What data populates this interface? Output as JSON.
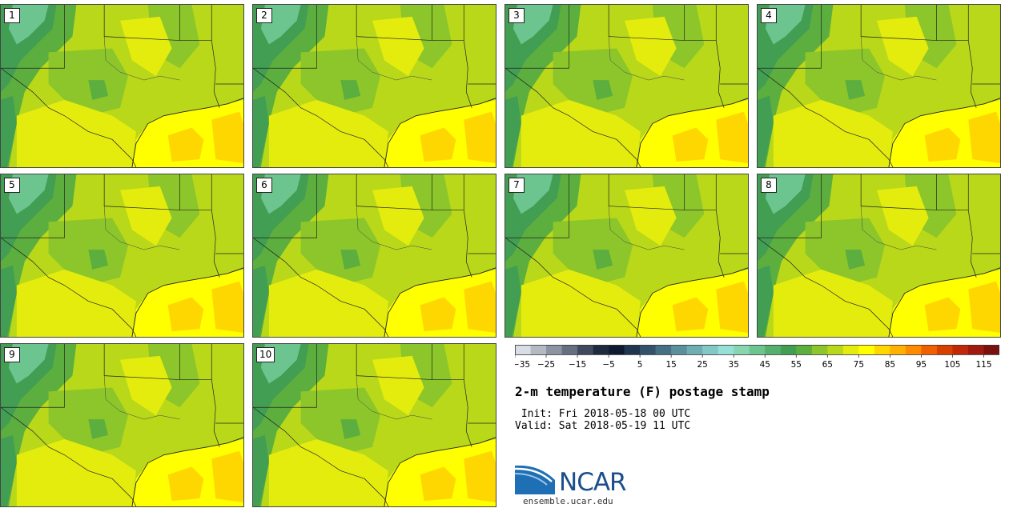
{
  "panels": [
    {
      "label": "1"
    },
    {
      "label": "2"
    },
    {
      "label": "3"
    },
    {
      "label": "4"
    },
    {
      "label": "5"
    },
    {
      "label": "6"
    },
    {
      "label": "7"
    },
    {
      "label": "8"
    },
    {
      "label": "9"
    },
    {
      "label": "10"
    }
  ],
  "colorbar": {
    "colors": [
      "#d9dde5",
      "#b4b9c3",
      "#8d93a0",
      "#666f80",
      "#3f4a5e",
      "#1d2a40",
      "#0d1a30",
      "#1f3550",
      "#32516a",
      "#457083",
      "#5a8f9c",
      "#6fadb3",
      "#83c8c6",
      "#97e0d7",
      "#88d6b0",
      "#6cc48e",
      "#55b06e",
      "#419e52",
      "#5cae3e",
      "#8cc62a",
      "#b9d81a",
      "#e4ec0e",
      "#ffff00",
      "#ffd700",
      "#ffb000",
      "#ff8a00",
      "#f06000",
      "#d84000",
      "#c02808",
      "#a01a10",
      "#7a1010"
    ],
    "tick_labels": [
      "−35",
      "−25",
      "−15",
      "−5",
      "5",
      "15",
      "25",
      "35",
      "45",
      "55",
      "65",
      "75",
      "85",
      "95",
      "105",
      "115"
    ]
  },
  "title": "2-m temperature (F) postage stamp",
  "init_line": " Init: Fri 2018-05-18 00 UTC",
  "valid_line": "Valid: Sat 2018-05-19 11 UTC",
  "logo": {
    "text": "NCAR",
    "site": "ensemble.ucar.edu"
  }
}
